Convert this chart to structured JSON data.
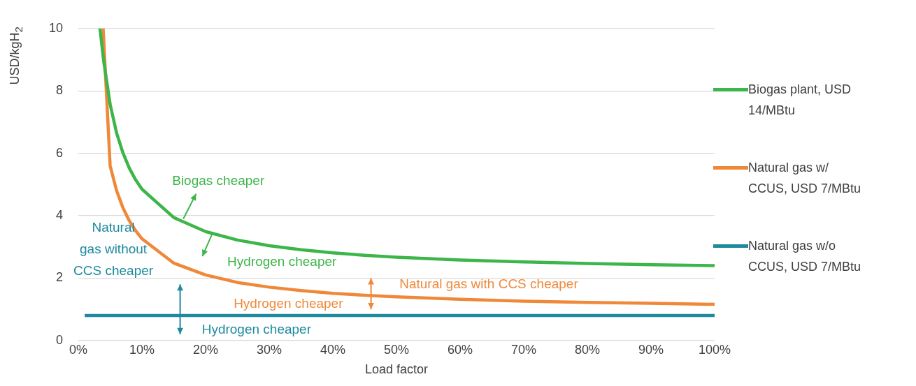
{
  "chart_data": {
    "type": "line",
    "xlabel": "Load factor",
    "ylabel": "USD/kgH$_{2}$",
    "xlim": [
      0,
      100
    ],
    "ylim": [
      0,
      10
    ],
    "xticks": [
      {
        "value": 0,
        "label": "0%"
      },
      {
        "value": 10,
        "label": "10%"
      },
      {
        "value": 20,
        "label": "20%"
      },
      {
        "value": 30,
        "label": "30%"
      },
      {
        "value": 40,
        "label": "40%"
      },
      {
        "value": 50,
        "label": "50%"
      },
      {
        "value": 60,
        "label": "60%"
      },
      {
        "value": 70,
        "label": "70%"
      },
      {
        "value": 80,
        "label": "80%"
      },
      {
        "value": 90,
        "label": "90%"
      },
      {
        "value": 100,
        "label": "100%"
      }
    ],
    "yticks": [
      0,
      2,
      4,
      6,
      8,
      10
    ],
    "grid": "y",
    "legend": "right",
    "marker": "none",
    "series": [
      {
        "name": "Biogas plant, USD 14/MBtu",
        "color": "#3cb54a",
        "x": [
          3.4,
          4,
          5,
          6,
          7,
          8,
          9,
          10,
          15,
          20,
          25,
          30,
          35,
          40,
          45,
          50,
          60,
          70,
          80,
          90,
          100
        ],
        "values": [
          10,
          8.93,
          7.57,
          6.66,
          6.02,
          5.53,
          5.15,
          4.85,
          3.94,
          3.49,
          3.22,
          3.04,
          2.91,
          2.81,
          2.73,
          2.67,
          2.58,
          2.52,
          2.47,
          2.43,
          2.4
        ]
      },
      {
        "name": "Natural gas w/ CCUS, USD 7/MBtu",
        "color": "#f0883a",
        "x": [
          3.9,
          5,
          6,
          7,
          8,
          9,
          10,
          15,
          20,
          25,
          30,
          35,
          40,
          45,
          50,
          60,
          70,
          80,
          90,
          100
        ],
        "values": [
          10,
          5.6,
          4.81,
          4.26,
          3.84,
          3.52,
          3.26,
          2.48,
          2.1,
          1.86,
          1.71,
          1.6,
          1.51,
          1.45,
          1.4,
          1.32,
          1.26,
          1.22,
          1.19,
          1.16
        ]
      },
      {
        "name": "Natural gas w/o CCUS, USD 7/MBtu",
        "color": "#1d8a9e",
        "x": [
          1,
          100
        ],
        "values": [
          0.8,
          0.8
        ]
      }
    ],
    "annotations": [
      "Biogas cheaper",
      "Hydrogen cheaper",
      "Natural\ngas without\nCCS cheaper",
      "Hydrogen cheaper",
      "Natural gas with CCS cheaper",
      "Hydrogen cheaper"
    ]
  }
}
